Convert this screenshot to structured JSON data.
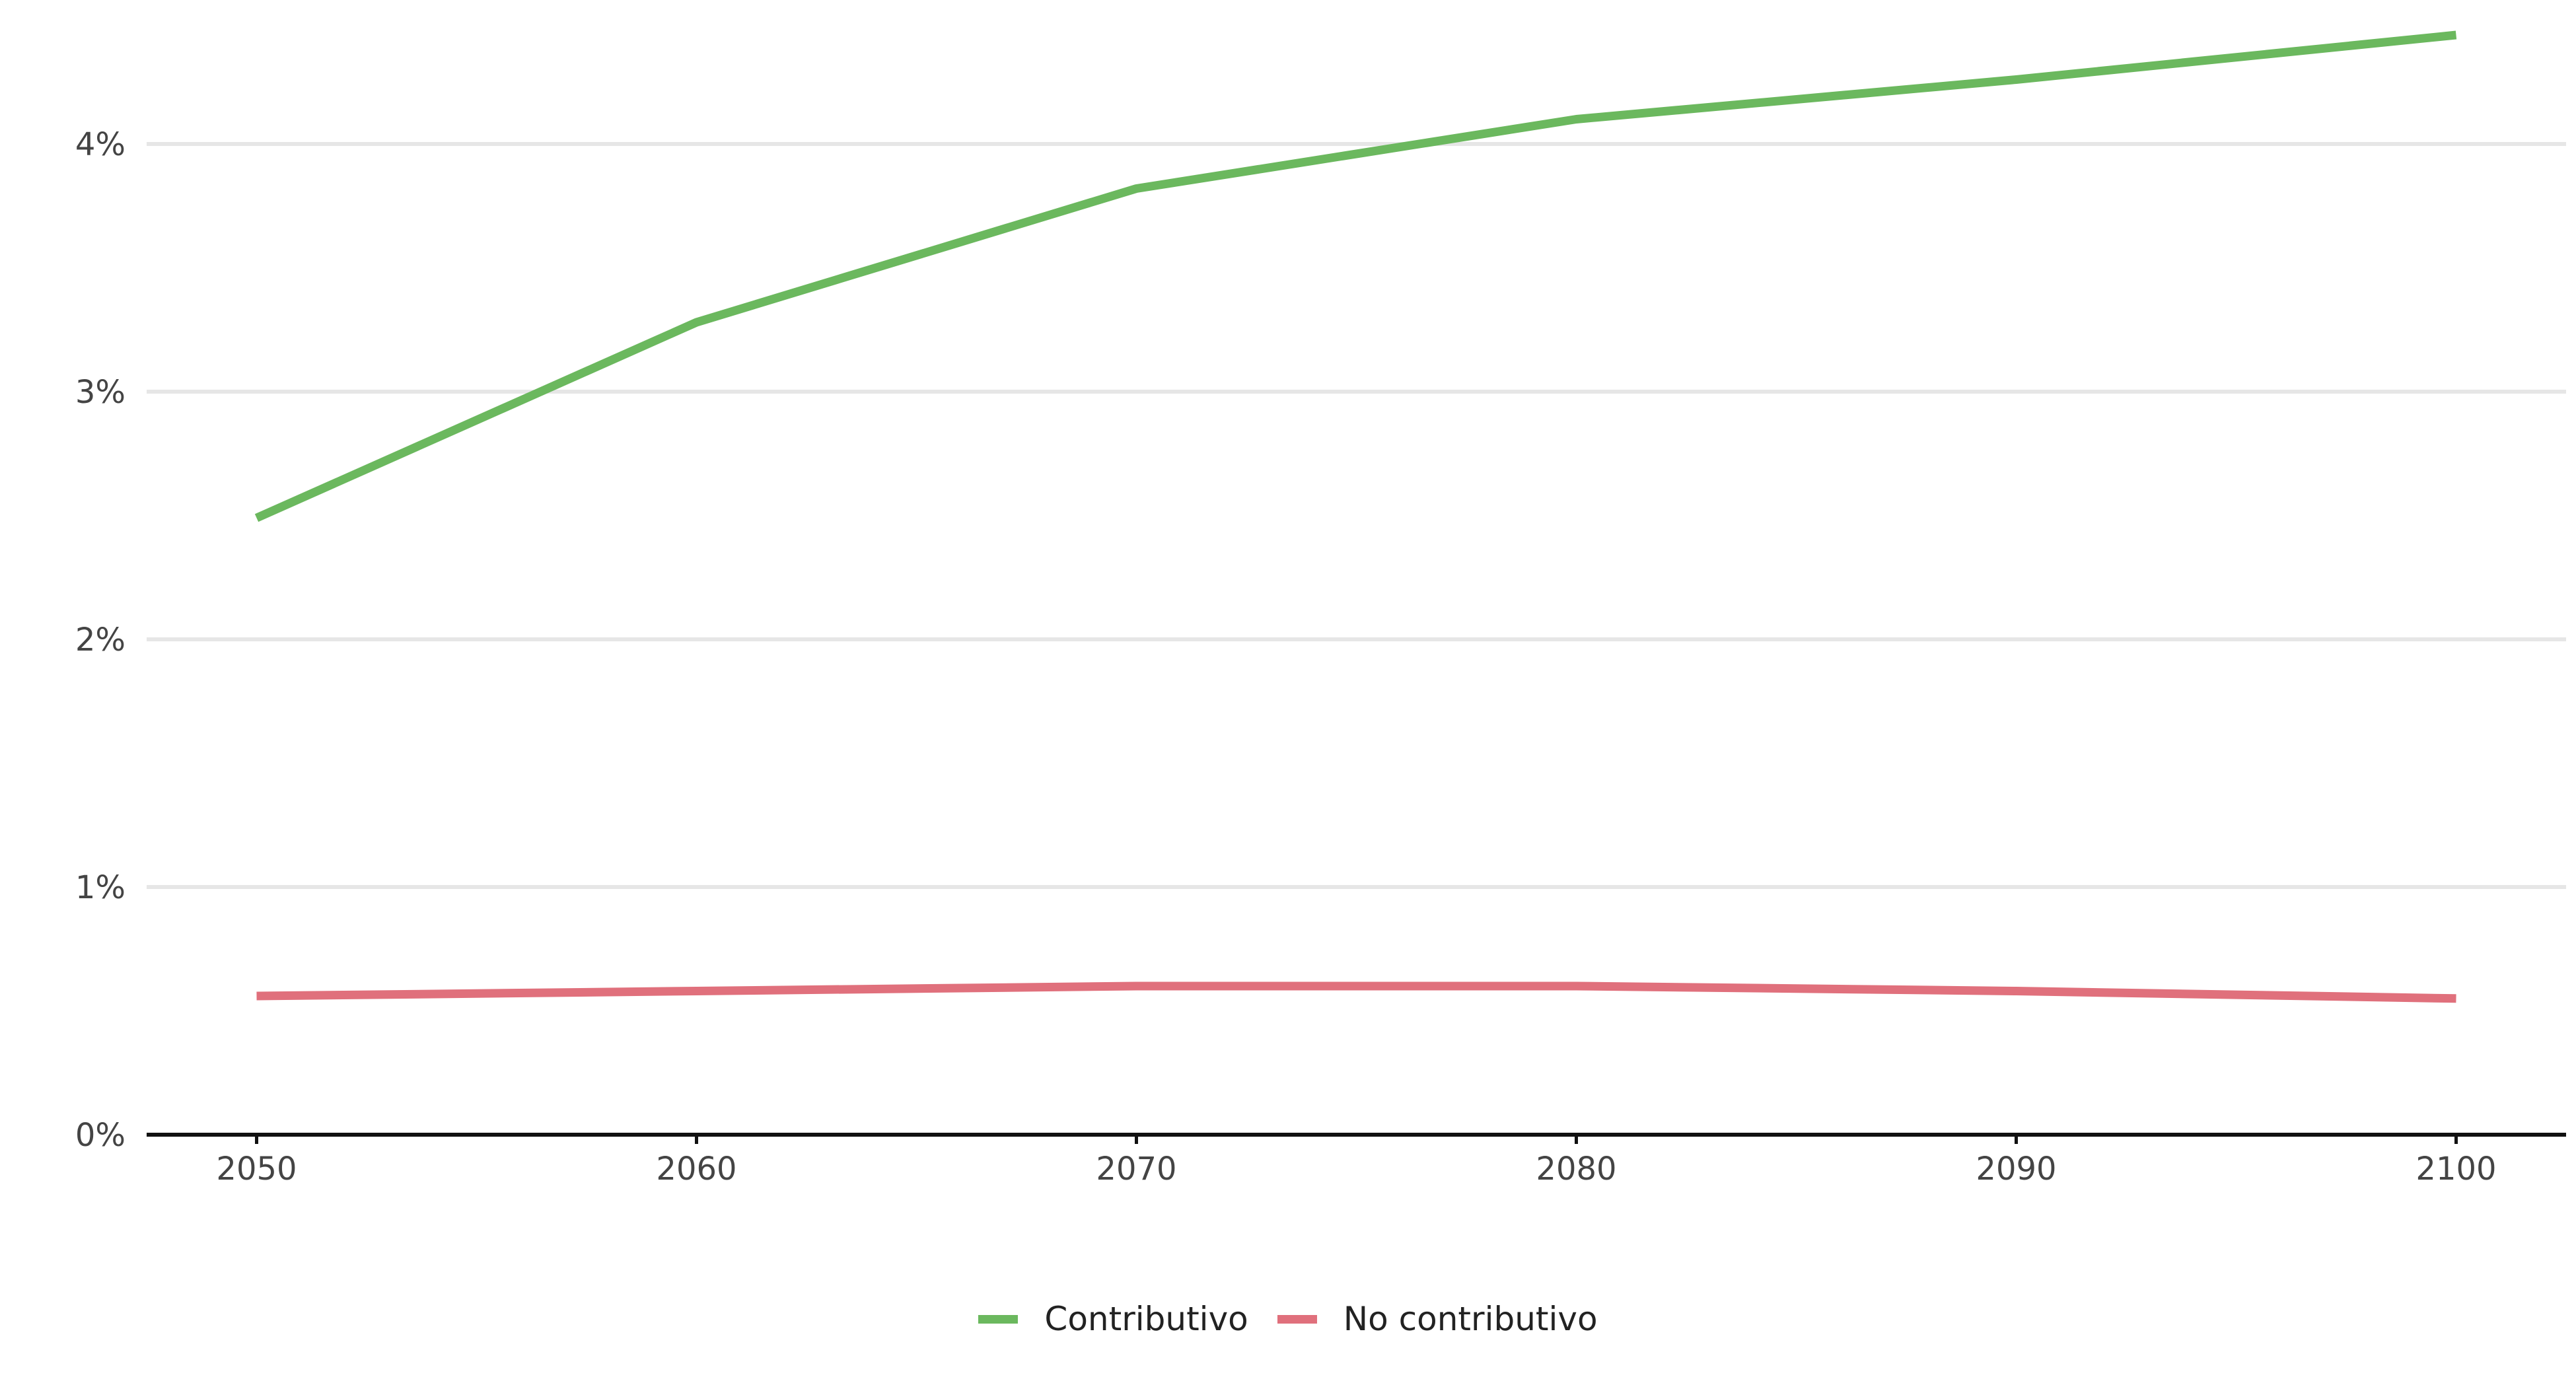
{
  "chart_data": {
    "type": "line",
    "title": "",
    "xlabel": "",
    "ylabel": "",
    "x": [
      2050,
      2060,
      2070,
      2080,
      2090,
      2100
    ],
    "xlim": [
      2047.5,
      2102.5
    ],
    "ylim": [
      0,
      4.5
    ],
    "y_ticks": [
      {
        "value": 0,
        "label": "0%"
      },
      {
        "value": 1,
        "label": "1%"
      },
      {
        "value": 2,
        "label": "2%"
      },
      {
        "value": 3,
        "label": "3%"
      },
      {
        "value": 4,
        "label": "4%"
      }
    ],
    "x_ticks": [
      {
        "value": 2050,
        "label": "2050"
      },
      {
        "value": 2060,
        "label": "2060"
      },
      {
        "value": 2070,
        "label": "2070"
      },
      {
        "value": 2080,
        "label": "2080"
      },
      {
        "value": 2090,
        "label": "2090"
      },
      {
        "value": 2100,
        "label": "2100"
      }
    ],
    "series": [
      {
        "name": "Contributivo",
        "color": "#6bb85e",
        "values": [
          2.49,
          3.28,
          3.82,
          4.1,
          4.26,
          4.44
        ]
      },
      {
        "name": "No contributivo",
        "color": "#e0707c",
        "values": [
          0.56,
          0.58,
          0.6,
          0.6,
          0.58,
          0.55
        ]
      }
    ],
    "grid": "horizontal",
    "legend_position": "bottom"
  }
}
